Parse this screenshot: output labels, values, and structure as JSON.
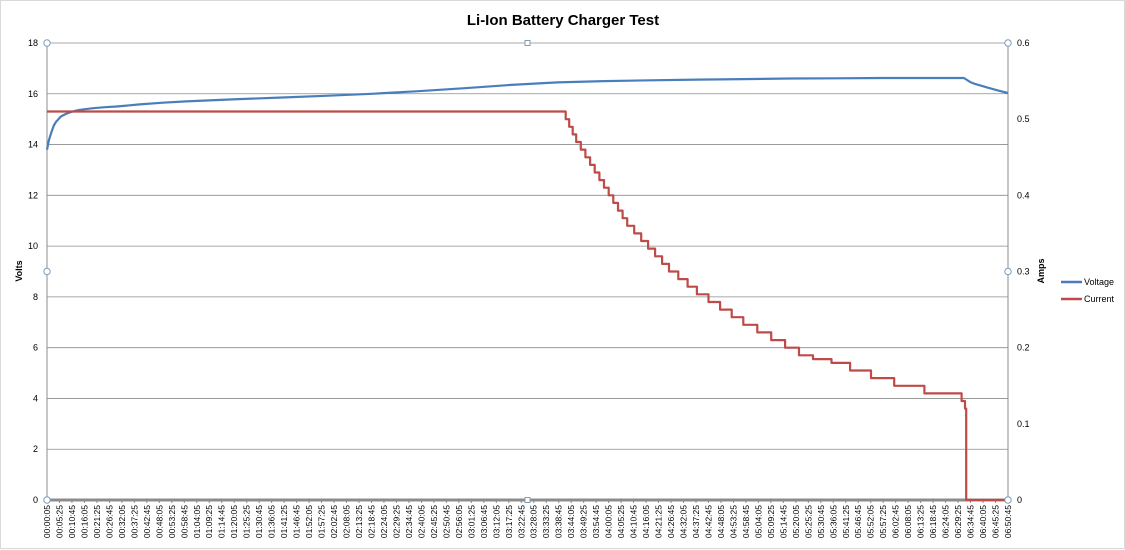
{
  "chart_data": {
    "type": "line",
    "title": "Li-Ion Battery Charger Test",
    "ylabel": "Volts",
    "y2label": "Amps",
    "ylim": [
      0,
      18
    ],
    "y2lim": [
      0,
      0.6
    ],
    "yticks": [
      0,
      2,
      4,
      6,
      8,
      10,
      12,
      14,
      16,
      18
    ],
    "y2ticks": [
      "0",
      "0.1",
      "0.2",
      "0.3",
      "0.4",
      "0.5",
      "0.6"
    ],
    "grid": true,
    "legend_position": "right",
    "x_tick_labels": [
      "00:00:05",
      "00:05:25",
      "00:10:45",
      "00:16:05",
      "00:21:25",
      "00:26:45",
      "00:32:05",
      "00:37:25",
      "00:42:45",
      "00:48:05",
      "00:53:25",
      "00:58:45",
      "01:04:05",
      "01:09:25",
      "01:14:45",
      "01:20:05",
      "01:25:25",
      "01:30:45",
      "01:36:05",
      "01:41:25",
      "01:46:45",
      "01:52:05",
      "01:57:25",
      "02:02:45",
      "02:08:05",
      "02:13:25",
      "02:18:45",
      "02:24:05",
      "02:29:25",
      "02:34:45",
      "02:40:05",
      "02:45:25",
      "02:50:45",
      "02:56:05",
      "03:01:25",
      "03:06:45",
      "03:12:05",
      "03:17:25",
      "03:22:45",
      "03:28:05",
      "03:33:25",
      "03:38:45",
      "03:44:05",
      "03:49:25",
      "03:54:45",
      "04:00:05",
      "04:05:25",
      "04:10:45",
      "04:16:05",
      "04:21:25",
      "04:26:45",
      "04:32:05",
      "04:37:25",
      "04:42:45",
      "04:48:05",
      "04:53:25",
      "04:58:45",
      "05:04:05",
      "05:09:25",
      "05:14:45",
      "05:20:05",
      "05:25:25",
      "05:30:45",
      "05:36:05",
      "05:41:25",
      "05:46:45",
      "05:52:05",
      "05:57:25",
      "06:02:45",
      "06:08:05",
      "06:13:25",
      "06:18:45",
      "06:24:05",
      "06:29:25",
      "06:34:45",
      "06:40:05",
      "06:45:25",
      "06:50:45"
    ],
    "x_units": "minutes",
    "x_range": [
      0.083,
      414.0
    ],
    "series": [
      {
        "name": "Voltage",
        "axis": "left",
        "color": "#4a7ebb",
        "x": [
          0.08,
          1,
          2,
          3,
          4,
          5,
          6,
          8,
          10,
          12,
          14,
          16,
          20,
          25,
          30,
          40,
          50,
          60,
          70,
          80,
          100,
          120,
          140,
          160,
          180,
          200,
          220,
          240,
          260,
          280,
          300,
          320,
          340,
          360,
          380,
          395,
          398,
          400,
          405,
          410,
          414
        ],
        "values": [
          13.8,
          14.2,
          14.5,
          14.75,
          14.9,
          15.0,
          15.1,
          15.2,
          15.27,
          15.32,
          15.36,
          15.39,
          15.43,
          15.47,
          15.5,
          15.58,
          15.65,
          15.7,
          15.74,
          15.78,
          15.85,
          15.92,
          16.0,
          16.1,
          16.22,
          16.35,
          16.45,
          16.5,
          16.53,
          16.56,
          16.58,
          16.6,
          16.61,
          16.62,
          16.62,
          16.62,
          16.45,
          16.38,
          16.25,
          16.12,
          16.03
        ]
      },
      {
        "name": "Current",
        "axis": "right",
        "color": "#be4b48",
        "x": [
          0.08,
          222,
          223.5,
          225,
          226.5,
          228,
          230,
          232,
          234,
          236,
          238,
          240,
          242,
          244,
          246,
          248,
          250,
          253,
          256,
          259,
          262,
          265,
          268,
          272,
          276,
          280,
          285,
          290,
          295,
          300,
          306,
          312,
          318,
          324,
          330,
          338,
          346,
          355,
          365,
          378,
          394,
          395.5,
          396,
          414
        ],
        "values": [
          0.51,
          0.51,
          0.5,
          0.49,
          0.48,
          0.47,
          0.46,
          0.45,
          0.44,
          0.43,
          0.42,
          0.41,
          0.4,
          0.39,
          0.38,
          0.37,
          0.36,
          0.35,
          0.34,
          0.33,
          0.32,
          0.31,
          0.3,
          0.29,
          0.28,
          0.27,
          0.26,
          0.25,
          0.24,
          0.23,
          0.22,
          0.21,
          0.2,
          0.19,
          0.185,
          0.18,
          0.17,
          0.16,
          0.15,
          0.14,
          0.13,
          0.12,
          0.0,
          0.0
        ]
      }
    ]
  }
}
